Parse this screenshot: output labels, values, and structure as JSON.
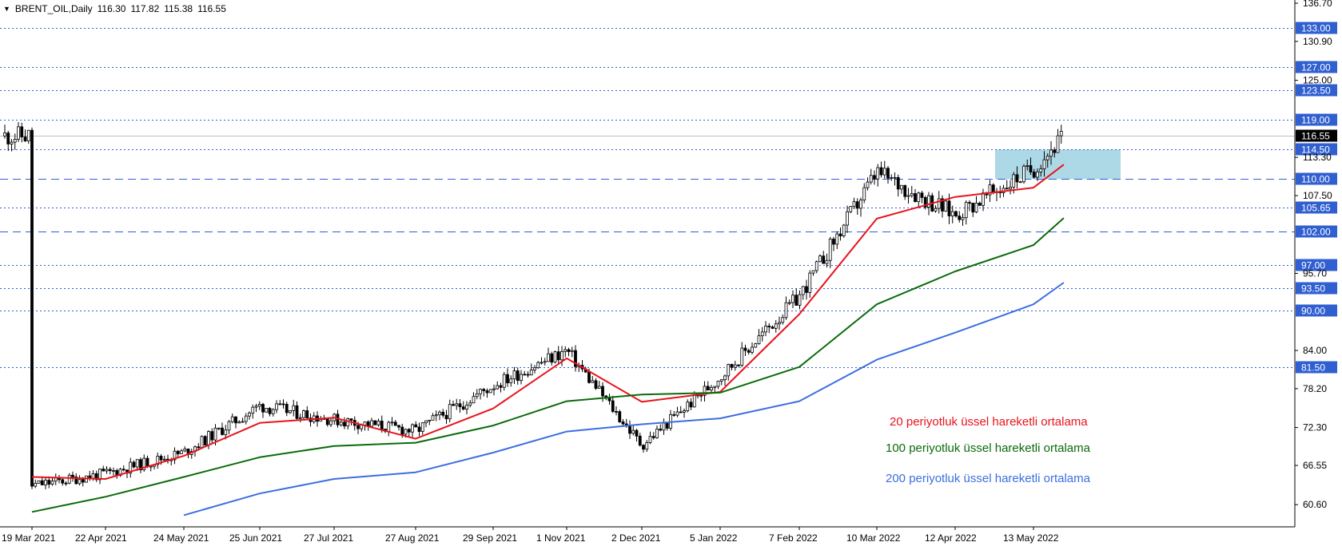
{
  "header": {
    "collapse_icon": "triangle-down-icon",
    "symbol": "BRENT_OIL,Daily",
    "open": "116.30",
    "high": "117.82",
    "low": "115.38",
    "close": "116.55"
  },
  "legend": {
    "ema20": "20 periyotluk üssel hareketli ortalama",
    "ema100": "100 periyotluk üssel hareketli ortalama",
    "ema200": "200 periyotluk üssel hareketli ortalama"
  },
  "colors": {
    "ema20": "#e8141c",
    "ema100": "#0b6b0b",
    "ema200": "#3c6ee0",
    "zone": "#add8e6",
    "level_line": "#2f5fd0",
    "current_price_bg": "#000000"
  },
  "chart_data": {
    "type": "candlestick",
    "ylim": [
      58.2,
      136.7
    ],
    "grid": false,
    "x_tick_labels": [
      "19 Mar 2021",
      "22 Apr 2021",
      "24 May 2021",
      "25 Jun 2021",
      "27 Jul 2021",
      "27 Aug 2021",
      "29 Sep 2021",
      "1 Nov 2021",
      "2 Dec 2021",
      "5 Jan 2022",
      "7 Feb 2022",
      "10 Mar 2022",
      "12 Apr 2022",
      "13 May 2022"
    ],
    "y_tick_labels": [
      "136.70",
      "130.90",
      "125.00",
      "113.30",
      "107.50",
      "95.70",
      "84.00",
      "78.20",
      "72.30",
      "66.55",
      "60.60"
    ],
    "horizontal_levels": [
      {
        "label": "133.00",
        "value": 133.0,
        "style": "dotted"
      },
      {
        "label": "127.00",
        "value": 127.0,
        "style": "dotted"
      },
      {
        "label": "123.50",
        "value": 123.5,
        "style": "dotted"
      },
      {
        "label": "119.00",
        "value": 119.0,
        "style": "dotted"
      },
      {
        "label": "114.50",
        "value": 114.5,
        "style": "dotted"
      },
      {
        "label": "110.00",
        "value": 110.0,
        "style": "dashed"
      },
      {
        "label": "105.65",
        "value": 105.65,
        "style": "dotted"
      },
      {
        "label": "102.00",
        "value": 102.0,
        "style": "dashed"
      },
      {
        "label": "97.00",
        "value": 97.0,
        "style": "dotted"
      },
      {
        "label": "93.50",
        "value": 93.5,
        "style": "dotted"
      },
      {
        "label": "90.00",
        "value": 90.0,
        "style": "dotted"
      },
      {
        "label": "81.50",
        "value": 81.5,
        "style": "dotted"
      }
    ],
    "current_price": {
      "label": "116.55",
      "value": 116.55
    },
    "zone": {
      "from": 110.0,
      "to": 114.5
    },
    "price_path": [
      [
        "19 Mar 2021",
        63.5
      ],
      [
        "22 Apr 2021",
        65.3
      ],
      [
        "24 May 2021",
        68.5
      ],
      [
        "25 Jun 2021",
        75.6
      ],
      [
        "27 Jul 2021",
        73.5
      ],
      [
        "27 Aug 2021",
        71.8
      ],
      [
        "29 Sep 2021",
        78.7
      ],
      [
        "1 Nov 2021",
        84.0
      ],
      [
        "2 Dec 2021",
        69.6
      ],
      [
        "5 Jan 2022",
        80.0
      ],
      [
        "7 Feb 2022",
        92.2
      ],
      [
        "10 Mar 2022",
        111.0
      ],
      [
        "12 Apr 2022",
        104.6
      ],
      [
        "13 May 2022",
        111.6
      ],
      [
        "25 May 2022",
        116.55
      ]
    ],
    "series": [
      {
        "name": "20 periyotluk üssel hareketli ortalama",
        "points": [
          [
            "19 Mar 2021",
            64.8
          ],
          [
            "22 Apr 2021",
            64.5
          ],
          [
            "24 May 2021",
            68.0
          ],
          [
            "25 Jun 2021",
            73.0
          ],
          [
            "27 Jul 2021",
            73.8
          ],
          [
            "27 Aug 2021",
            70.6
          ],
          [
            "29 Sep 2021",
            75.2
          ],
          [
            "1 Nov 2021",
            82.8
          ],
          [
            "2 Dec 2021",
            76.2
          ],
          [
            "5 Jan 2022",
            77.7
          ],
          [
            "7 Feb 2022",
            89.5
          ],
          [
            "10 Mar 2022",
            104.0
          ],
          [
            "12 Apr 2022",
            107.3
          ],
          [
            "13 May 2022",
            108.7
          ],
          [
            "25 May 2022",
            112.2
          ]
        ]
      },
      {
        "name": "100 periyotluk üssel hareketli ortalama",
        "points": [
          [
            "19 Mar 2021",
            59.5
          ],
          [
            "22 Apr 2021",
            61.8
          ],
          [
            "24 May 2021",
            64.8
          ],
          [
            "25 Jun 2021",
            67.8
          ],
          [
            "27 Jul 2021",
            69.5
          ],
          [
            "27 Aug 2021",
            70.0
          ],
          [
            "29 Sep 2021",
            72.6
          ],
          [
            "1 Nov 2021",
            76.3
          ],
          [
            "2 Dec 2021",
            77.3
          ],
          [
            "5 Jan 2022",
            77.6
          ],
          [
            "7 Feb 2022",
            81.5
          ],
          [
            "10 Mar 2022",
            91.0
          ],
          [
            "12 Apr 2022",
            96.0
          ],
          [
            "13 May 2022",
            100.0
          ],
          [
            "25 May 2022",
            104.1
          ]
        ]
      },
      {
        "name": "200 periyotluk üssel hareketli ortalama",
        "points": [
          [
            "24 May 2021",
            59.0
          ],
          [
            "25 Jun 2021",
            62.3
          ],
          [
            "27 Jul 2021",
            64.5
          ],
          [
            "27 Aug 2021",
            65.5
          ],
          [
            "29 Sep 2021",
            68.5
          ],
          [
            "1 Nov 2021",
            71.7
          ],
          [
            "2 Dec 2021",
            72.8
          ],
          [
            "5 Jan 2022",
            73.7
          ],
          [
            "7 Feb 2022",
            76.3
          ],
          [
            "10 Mar 2022",
            82.6
          ],
          [
            "12 Apr 2022",
            86.7
          ],
          [
            "13 May 2022",
            91.0
          ],
          [
            "25 May 2022",
            94.3
          ]
        ]
      }
    ]
  }
}
